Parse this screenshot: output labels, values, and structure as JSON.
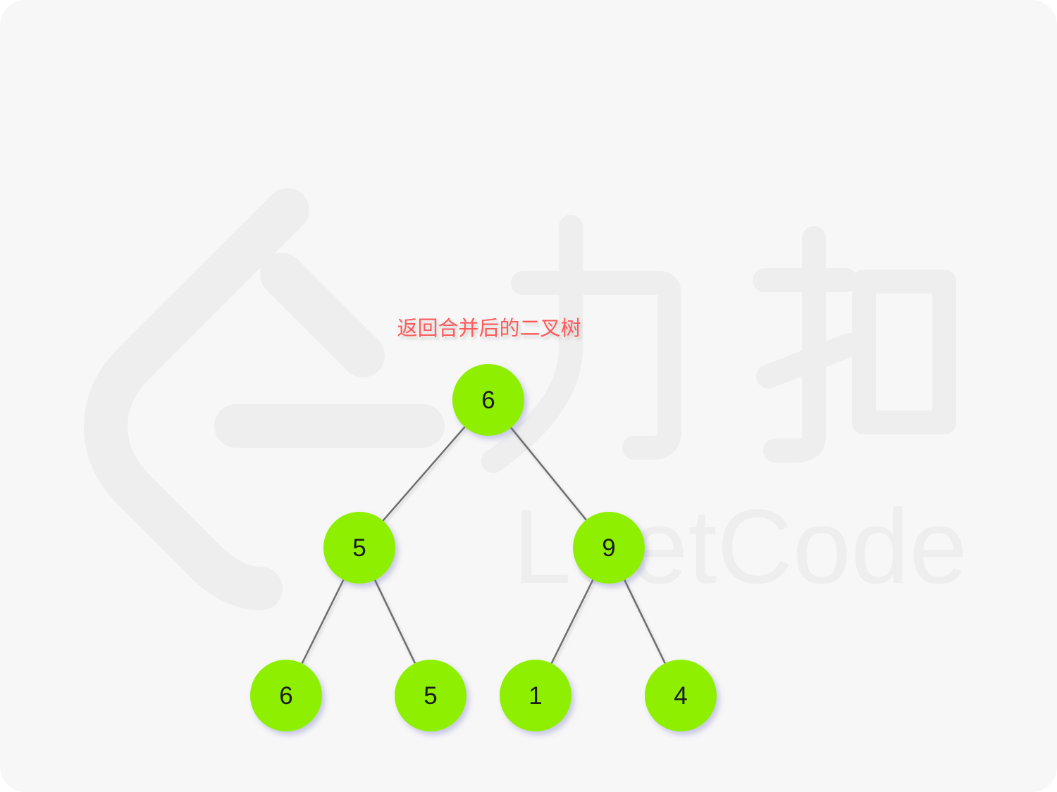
{
  "caption": "返回合并后的二叉树",
  "watermark": {
    "brand_cn": "力扣",
    "brand_en": "LeetCode",
    "icon": "leetcode-logo-icon"
  },
  "tree": {
    "nodes": [
      {
        "id": "n0",
        "value": "6",
        "level": 0
      },
      {
        "id": "n1",
        "value": "5",
        "level": 1
      },
      {
        "id": "n2",
        "value": "9",
        "level": 1
      },
      {
        "id": "n3",
        "value": "6",
        "level": 2
      },
      {
        "id": "n4",
        "value": "5",
        "level": 2
      },
      {
        "id": "n5",
        "value": "1",
        "level": 2
      },
      {
        "id": "n6",
        "value": "4",
        "level": 2
      }
    ],
    "edges": [
      [
        "n0",
        "n1"
      ],
      [
        "n0",
        "n2"
      ],
      [
        "n1",
        "n3"
      ],
      [
        "n1",
        "n4"
      ],
      [
        "n2",
        "n5"
      ],
      [
        "n2",
        "n6"
      ]
    ]
  },
  "colors": {
    "background": "#f7f7f7",
    "watermark": "#eeeeee",
    "node_fill": "#8fef00",
    "node_text": "#1a1a1a",
    "edge": "#6e6e6e",
    "caption": "#ff5a5a"
  }
}
